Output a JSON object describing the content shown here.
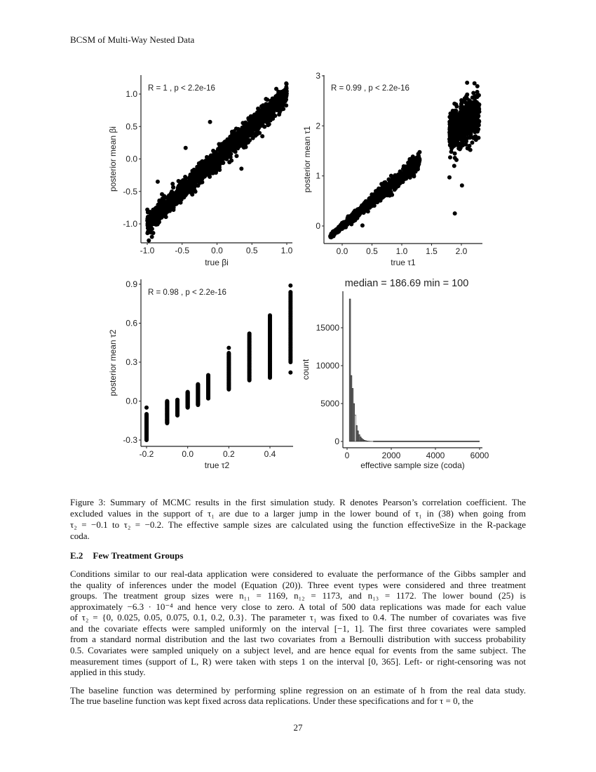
{
  "header": "BCSM of Multi-Way Nested Data",
  "page_number": "27",
  "caption_lines": [
    "Figure 3: Summary of MCMC results in the first simulation study. R denotes Pearson’s correlation coefficient. The",
    "excluded values in the support of τ₁ are due to a larger jump in the lower bound of τ₁ in (38) when going from",
    "τ₂ = −0.1 to τ₂ = −0.2. The effective sample sizes are calculated using the function effectiveSize in the R-package",
    "coda."
  ],
  "section": {
    "number": "E.2",
    "title": "Few Treatment Groups"
  },
  "paragraph1_lines": [
    "Conditions similar to our real-data application were considered to evaluate the performance of the Gibbs sampler and",
    "the quality of inferences under the model (Equation (20)). Three event types were considered and three treatment",
    "groups. The treatment group sizes were n₁₁ = 1169, n₁₂ = 1173, and n₁₃ = 1172. The lower bound (25) is",
    "approximately −6.3 · 10⁻⁴ and hence very close to zero. A total of 500 data replications was made for each value",
    "of τ₂ = {0, 0.025, 0.05, 0.075, 0.1, 0.2, 0.3}. The parameter τ₁ was fixed to 0.4. The number of covariates was five",
    "and the covariate effects were sampled uniformly on the interval [−1, 1]. The first three covariates were sampled",
    "from a standard normal distribution and the last two covariates from a Bernoulli distribution with success probability",
    "0.5. Covariates were sampled uniquely on a subject level, and are hence equal for events from the same subject. The",
    "measurement times (support of L, R) were taken with steps 1 on the interval [0, 365]. Left- or right-censoring was not",
    "applied in this study."
  ],
  "paragraph2_lines": [
    "The baseline function was determined by performing spline regression on an estimate of h from the real data study.",
    "The true baseline function was kept fixed across data replications. Under these specifications and for τ = 0, the"
  ],
  "chart_data": [
    {
      "type": "scatter",
      "annotation": "R = 1 , p < 2.2e-16",
      "xlabel": "true  βi",
      "ylabel": "posterior mean  βi",
      "xlim": [
        -1.1,
        1.08
      ],
      "ylim": [
        -1.22,
        1.25
      ],
      "xticks": [
        "-1.0",
        "-0.5",
        "0.0",
        "0.5",
        "1.0"
      ],
      "xtick_values": [
        -1,
        -0.5,
        0,
        0.5,
        1
      ],
      "yticks": [
        "-1.0",
        "-0.5",
        "0.0",
        "0.5",
        "1.0"
      ],
      "ytick_values": [
        -1,
        -0.5,
        0,
        0.5,
        1
      ],
      "clusters": [
        {
          "x_range": [
            -1,
            1
          ],
          "slope": 1.0,
          "intercept": 0,
          "noise_sd": 0.08,
          "n": 1600
        }
      ],
      "outliers": [
        [
          -0.1,
          0.57
        ],
        [
          -0.45,
          0.17
        ],
        [
          -0.25,
          -0.1
        ],
        [
          -0.85,
          -0.35
        ],
        [
          0.35,
          -0.15
        ],
        [
          0.65,
          0.35
        ],
        [
          0.8,
          0.62
        ],
        [
          -0.6,
          -0.7
        ]
      ]
    },
    {
      "type": "scatter",
      "annotation": "R = 0.99 , p < 2.2e-16",
      "xlabel": "true  τ1",
      "ylabel": "posterior mean  τ1",
      "xlim": [
        -0.33,
        2.35
      ],
      "ylim": [
        -0.35,
        3.0
      ],
      "xticks": [
        "0.0",
        "0.5",
        "1.0",
        "1.5",
        "2.0"
      ],
      "xtick_values": [
        0,
        0.5,
        1,
        1.5,
        2
      ],
      "yticks": [
        "0",
        "1",
        "2",
        "3"
      ],
      "ytick_values": [
        0,
        1,
        2,
        3
      ],
      "clusters": [
        {
          "x_range": [
            -0.2,
            1.3
          ],
          "slope": 1.0,
          "intercept": 0,
          "noise_sd": 0.07,
          "n": 1100
        },
        {
          "x_range": [
            1.8,
            2.3
          ],
          "slope": 0.8,
          "intercept": 0.4,
          "noise_sd": 0.22,
          "n": 600
        }
      ],
      "outliers": [
        [
          1.89,
          0.25
        ],
        [
          2.01,
          0.81
        ],
        [
          1.8,
          0.97
        ],
        [
          0.34,
          0.01
        ],
        [
          1.88,
          1.2
        ],
        [
          2.15,
          1.52
        ],
        [
          2.22,
          2.85
        ]
      ]
    },
    {
      "type": "scatter",
      "annotation": "R = 0.98 , p < 2.2e-16",
      "xlabel": "true  τ2",
      "ylabel": "posterior mean  τ2",
      "xlim": [
        -0.26,
        0.55
      ],
      "ylim": [
        -0.33,
        0.93
      ],
      "xticks": [
        "-0.2",
        "0.0",
        "0.2",
        "0.4"
      ],
      "xtick_values": [
        -0.2,
        0,
        0.2,
        0.4
      ],
      "yticks": [
        "-0.3",
        "0.0",
        "0.3",
        "0.6",
        "0.9"
      ],
      "ytick_values": [
        -0.3,
        0,
        0.3,
        0.6,
        0.9
      ],
      "columns": [
        {
          "x": -0.2,
          "y_range": [
            -0.3,
            -0.1
          ]
        },
        {
          "x": -0.1,
          "y_range": [
            -0.17,
            0.0
          ]
        },
        {
          "x": -0.05,
          "y_range": [
            -0.11,
            0.01
          ]
        },
        {
          "x": 0.0,
          "y_range": [
            -0.05,
            0.07
          ]
        },
        {
          "x": 0.05,
          "y_range": [
            -0.03,
            0.13
          ]
        },
        {
          "x": 0.1,
          "y_range": [
            0.02,
            0.2
          ]
        },
        {
          "x": 0.2,
          "y_range": [
            0.09,
            0.37
          ]
        },
        {
          "x": 0.3,
          "y_range": [
            0.16,
            0.52
          ]
        },
        {
          "x": 0.4,
          "y_range": [
            0.18,
            0.66
          ]
        },
        {
          "x": 0.5,
          "y_range": [
            0.3,
            0.84
          ]
        }
      ],
      "outliers": [
        [
          -0.2,
          -0.05
        ],
        [
          0.2,
          0.41
        ],
        [
          0.5,
          0.89
        ],
        [
          0.5,
          0.22
        ]
      ]
    },
    {
      "type": "bar",
      "title": "median = 186.69 min = 100",
      "xlabel": "effective sample size (coda)",
      "ylabel": "count",
      "xlim": [
        -200,
        6300
      ],
      "ylim": [
        -800,
        19500
      ],
      "xticks": [
        "0",
        "2000",
        "4000",
        "6000"
      ],
      "xtick_values": [
        0,
        2000,
        4000,
        6000
      ],
      "yticks": [
        "0",
        "5000",
        "10000",
        "15000"
      ],
      "ytick_values": [
        0,
        5000,
        10000,
        15000
      ],
      "bin_start": 100,
      "bin_width": 60,
      "counts": [
        18800,
        8700,
        7000,
        5000,
        3500,
        2100,
        1400,
        900,
        600,
        400,
        250,
        150,
        100,
        60,
        40,
        25,
        15,
        10
      ],
      "tail": {
        "from": 1180,
        "to": 6000,
        "count": 5
      }
    }
  ]
}
